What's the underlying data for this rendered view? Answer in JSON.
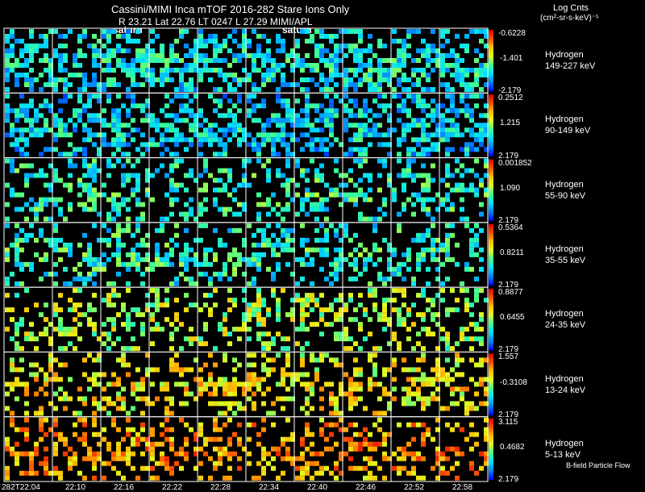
{
  "header": {
    "title": "Cassini/MIMI Inca mTOF  2016-282   Stare   Ions Only",
    "subtitle": "R        23.21  Lat 22.76  LT 0247  L          27.29   MIMI/APL",
    "unit_line1": "Log Cnts",
    "unit_line2": "(cm²-sr-s-keV)⁻¹",
    "saturn_labels": [
      "saturn",
      "saturn"
    ],
    "footnote": "B-field Particle Flow"
  },
  "colors": {
    "background": "#000000",
    "grid": "#ffffff",
    "colormap": [
      "#0000ff",
      "#0080ff",
      "#00e0ff",
      "#40ff90",
      "#e0ff20",
      "#ffc000",
      "#ff5000",
      "#e00000"
    ]
  },
  "chart_data": {
    "type": "heatmap",
    "title": "Cassini/MIMI Inca mTOF  2016-282   Stare   Ions Only",
    "x_tick_labels": [
      "282T22:04",
      "22:10",
      "22:16",
      "22:22",
      "22:28",
      "22:34",
      "22:40",
      "22:46",
      "22:52",
      "22:58"
    ],
    "columns": 10,
    "rows": [
      {
        "species": "Hydrogen",
        "energy": "149-227 keV",
        "cbar_max": "-0.6228",
        "cbar_mid": "-1.401",
        "cbar_min": "-2.179",
        "mean_level": 0.28
      },
      {
        "species": "Hydrogen",
        "energy": "90-149 keV",
        "cbar_max": "0.2512",
        "cbar_mid": "1.215",
        "cbar_min": "2.179",
        "mean_level": 0.24
      },
      {
        "species": "Hydrogen",
        "energy": "55-90 keV",
        "cbar_max": "0.001852",
        "cbar_mid": "1.090",
        "cbar_min": "2.179",
        "mean_level": 0.33
      },
      {
        "species": "Hydrogen",
        "energy": "35-55 keV",
        "cbar_max": "0.5364",
        "cbar_mid": "0.8211",
        "cbar_min": "2.179",
        "mean_level": 0.33
      },
      {
        "species": "Hydrogen",
        "energy": "24-35 keV",
        "cbar_max": "0.8877",
        "cbar_mid": "0.6455",
        "cbar_min": "2.179",
        "mean_level": 0.5
      },
      {
        "species": "Hydrogen",
        "energy": "13-24 keV",
        "cbar_max": "1.557",
        "cbar_mid": "-0.3108",
        "cbar_min": "2.179",
        "mean_level": 0.6
      },
      {
        "species": "Hydrogen",
        "energy": "5-13 keV",
        "cbar_max": "3.115",
        "cbar_mid": "0.4682",
        "cbar_min": "2.179",
        "mean_level": 0.72
      }
    ]
  }
}
